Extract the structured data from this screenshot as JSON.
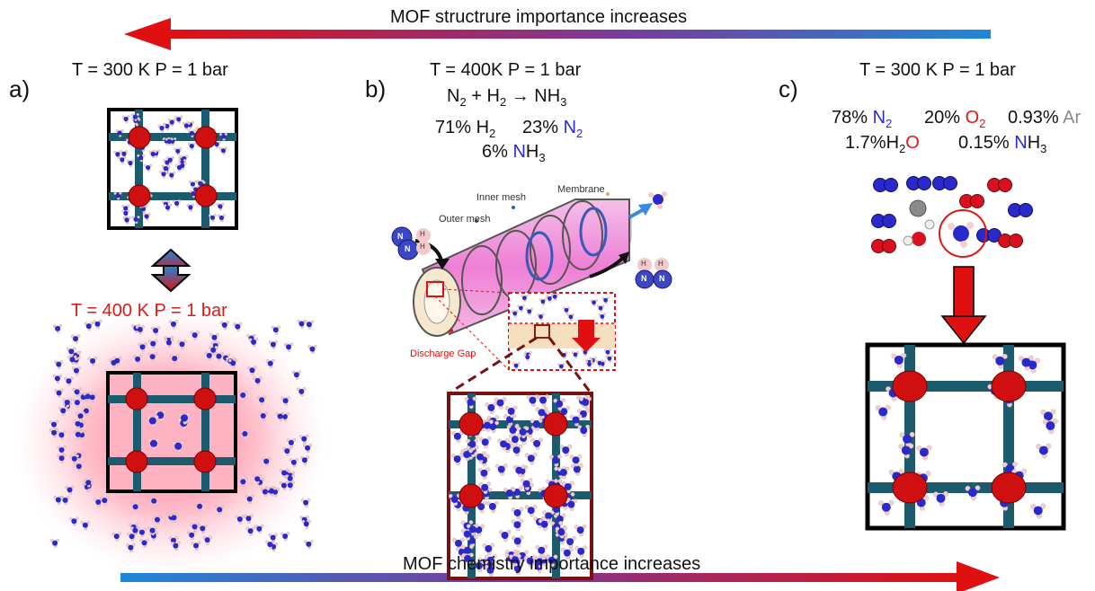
{
  "top_arrow": {
    "label": "MOF structrure importance increases"
  },
  "bottom_arrow": {
    "label": "MOF chemistry importance increases"
  },
  "panel_a": {
    "letter": "a)",
    "condition_top": "T = 300 K P = 1 bar",
    "condition_bottom": "T = 400 K P = 1 bar"
  },
  "panel_b": {
    "letter": "b)",
    "condition": "T = 400K P = 1 bar",
    "reaction": {
      "left_n": "N",
      "n_sub": "2",
      "plus": " + H",
      "h_sub": "2",
      "arrow_product": " → NH",
      "product_sub": "3"
    },
    "comp_h2": {
      "value": "71% H",
      "sub": "2"
    },
    "comp_n2": {
      "value": "23% ",
      "el": "N",
      "sub": "2"
    },
    "comp_nh3": {
      "value": "6% ",
      "el": "N",
      "rest": "H",
      "sub": "3"
    },
    "labels": {
      "inner_mesh": "Inner mesh",
      "membrane": "Membrane",
      "outer_mesh": "Outer mesh",
      "discharge_gap": "Discharge Gap"
    },
    "atom_n": "N",
    "atom_h": "H"
  },
  "panel_c": {
    "letter": "c)",
    "condition": "T = 300 K P = 1 bar",
    "comp_n2": {
      "value": "78% ",
      "el": "N",
      "sub": "2"
    },
    "comp_o2": {
      "value": "20% ",
      "el": "O",
      "sub": "2"
    },
    "comp_ar": {
      "value": "0.93% ",
      "el": "Ar"
    },
    "comp_h2o": {
      "value": "1.7%H",
      "sub": "2",
      "el": "O"
    },
    "comp_nh3": {
      "value": "0.15% ",
      "el": "N",
      "rest": "H",
      "sub": "3"
    }
  },
  "colors": {
    "frame": "#1c5a6e",
    "node": "#d01010",
    "n_atom": "#2a2acc",
    "h_atom": "#f2d4d4",
    "o_atom": "#d81020",
    "arrow_red": "#e01010",
    "arrow_blue": "#1e88d8"
  }
}
